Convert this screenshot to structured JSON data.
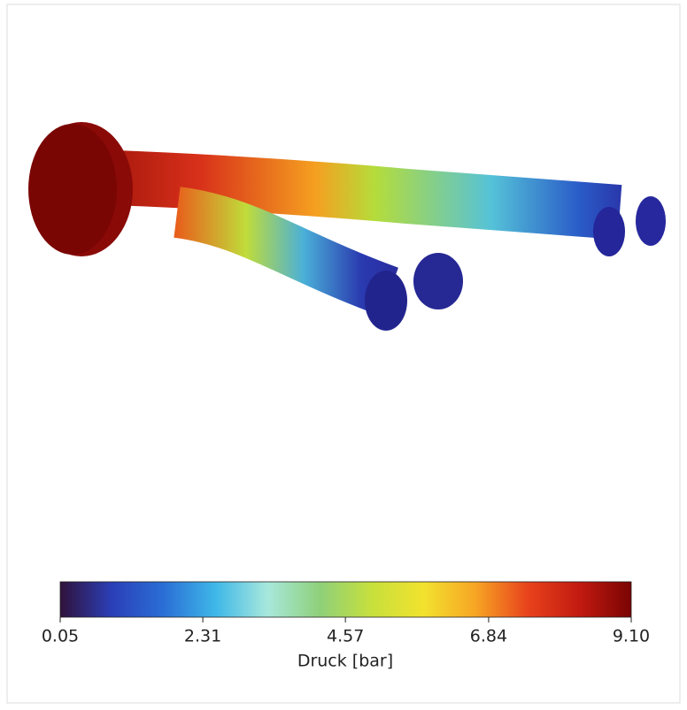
{
  "chart_data": {
    "type": "colorbar",
    "xlabel": "Druck [bar]",
    "xlim": [
      0.05,
      9.1
    ],
    "xticks": [
      0.05,
      2.31,
      4.57,
      6.84,
      {
        "value": 9.1,
        "label": "9.10"
      }
    ],
    "colors": [
      "#30123b",
      "#2b3fb8",
      "#2a6fd6",
      "#3fb8e8",
      "#a8e8dc",
      "#8ed07a",
      "#c7e03c",
      "#f2e22e",
      "#f7a524",
      "#e8431c",
      "#c21a10",
      "#7a0403"
    ]
  }
}
